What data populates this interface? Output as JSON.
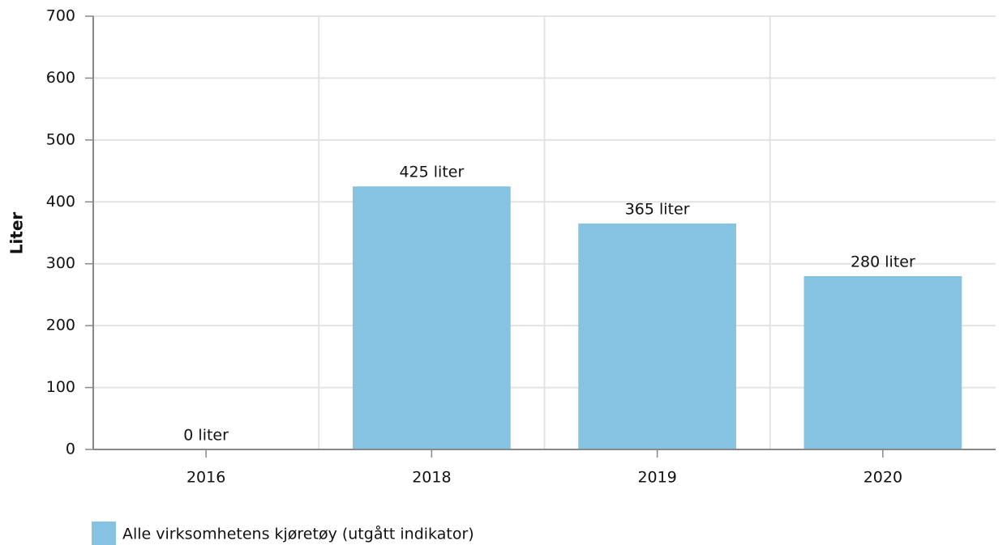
{
  "chart_data": {
    "type": "bar",
    "y_label": "Liter",
    "categories": [
      "2016",
      "2018",
      "2019",
      "2020"
    ],
    "series": [
      {
        "name": "Alle virksomhetens kjøretøy (utgått indikator)",
        "color": "#86c3e3",
        "values": [
          0,
          425,
          365,
          280
        ],
        "value_labels": [
          "0 liter",
          "425 liter",
          "365 liter",
          "280 liter"
        ]
      }
    ],
    "ylim": [
      0,
      700
    ],
    "yticks": [
      0,
      100,
      200,
      300,
      400,
      500,
      600,
      700
    ],
    "grid": true,
    "legend": "bottom-left"
  }
}
